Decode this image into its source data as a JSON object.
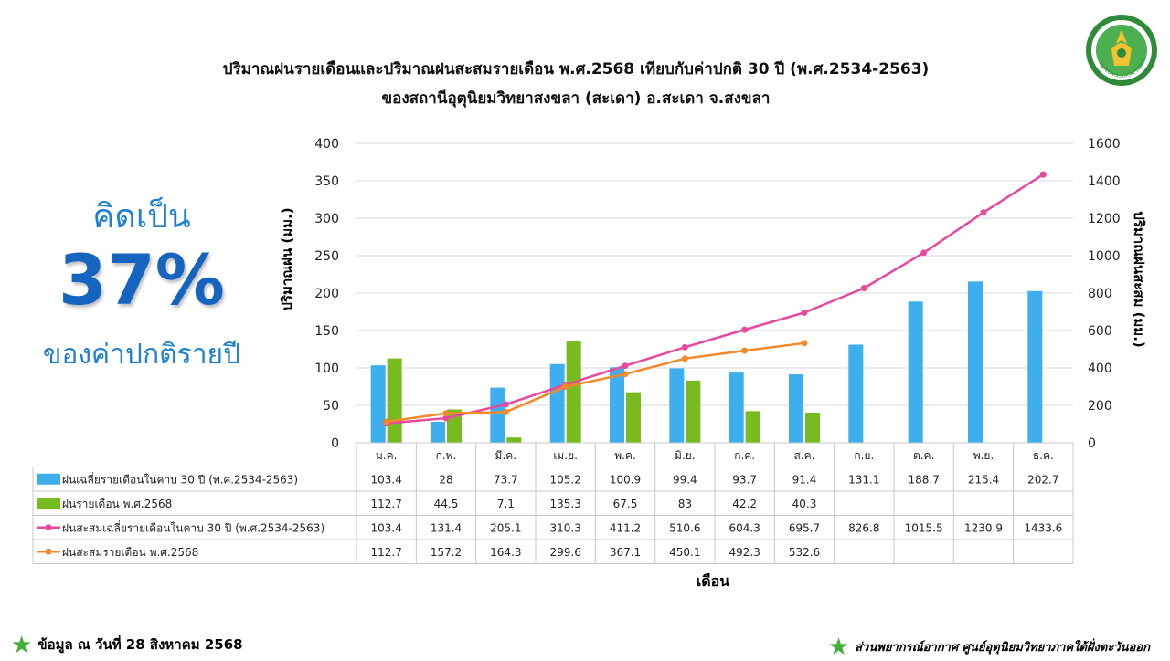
{
  "title_line1": "ปริมาณฝนรายเดือนและปริมาณฝนสะสมรายเดือน  พ.ศ.2568  เทียบกับค่าปกติ 30 ปี (พ.ศ.2534-2563)",
  "title_line2": "ของสถานีอุตุนิยมวิทยาสงขลา  (สะเดา) อ.สะเดา จ.สงขลา",
  "side_note": {
    "top": "คิดเป็น",
    "big": "37%",
    "bottom": "ของค่าปกติรายปี"
  },
  "footer": {
    "left": "ข้อมูล ณ วันที่ 28 สิงหาคม 2568",
    "right": "ส่วนพยากรณ์อากาศ ศูนย์อุตุนิยมวิทยาภาคใต้ฝั่งตะวันออก"
  },
  "colors": {
    "normal_bar": "#3daeee",
    "bar_2568": "#77bb1e",
    "normal_cum": "#e8489e",
    "cum_2568": "#f28a2c",
    "star": "#3fae3a"
  },
  "logo": {
    "icon": "meteorological-department-seal",
    "text": "METEOROLOGICAL DEPARTMENT"
  },
  "chart_data": {
    "type": "bar",
    "xlabel": "เดือน",
    "ylabel_left": "ปริมาณฝน (มม.)",
    "ylabel_right": "ปริมาณฝนสะสม (มม.)",
    "ylim_left": [
      0,
      400
    ],
    "yticks_left": [
      0,
      50,
      100,
      150,
      200,
      250,
      300,
      350,
      400
    ],
    "ylim_right": [
      0,
      1600
    ],
    "yticks_right": [
      0,
      200,
      400,
      600,
      800,
      1000,
      1200,
      1400,
      1600
    ],
    "grid": true,
    "categories": [
      "ม.ค.",
      "ก.พ.",
      "มี.ค.",
      "เม.ย.",
      "พ.ค.",
      "มิ.ย.",
      "ก.ค.",
      "ส.ค.",
      "ก.ย.",
      "ต.ค.",
      "พ.ย.",
      "ธ.ค."
    ],
    "series": [
      {
        "name": "ฝนเฉลี่ยรายเดือนในคาบ 30 ปี (พ.ศ.2534-2563)",
        "kind": "bar",
        "axis": "left",
        "values": [
          103.4,
          28,
          73.7,
          105.2,
          100.9,
          99.4,
          93.7,
          91.4,
          131.1,
          188.7,
          215.4,
          202.7
        ]
      },
      {
        "name": "ฝนรายเดือน พ.ศ.2568",
        "kind": "bar",
        "axis": "left",
        "values": [
          112.7,
          44.5,
          7.1,
          135.3,
          67.5,
          83,
          42.2,
          40.3,
          null,
          null,
          null,
          null
        ]
      },
      {
        "name": "ฝนสะสมเฉลี่ยรายเดือนในคาบ 30 ปี (พ.ศ.2534-2563)",
        "kind": "line",
        "axis": "right",
        "values": [
          103.4,
          131.4,
          205.1,
          310.3,
          411.2,
          510.6,
          604.3,
          695.7,
          826.8,
          1015.5,
          1230.9,
          1433.6
        ]
      },
      {
        "name": "ฝนสะสมรายเดือน พ.ศ.2568",
        "kind": "line",
        "axis": "right",
        "values": [
          112.7,
          157.2,
          164.3,
          299.6,
          367.1,
          450.1,
          492.3,
          532.6,
          null,
          null,
          null,
          null
        ]
      }
    ]
  }
}
